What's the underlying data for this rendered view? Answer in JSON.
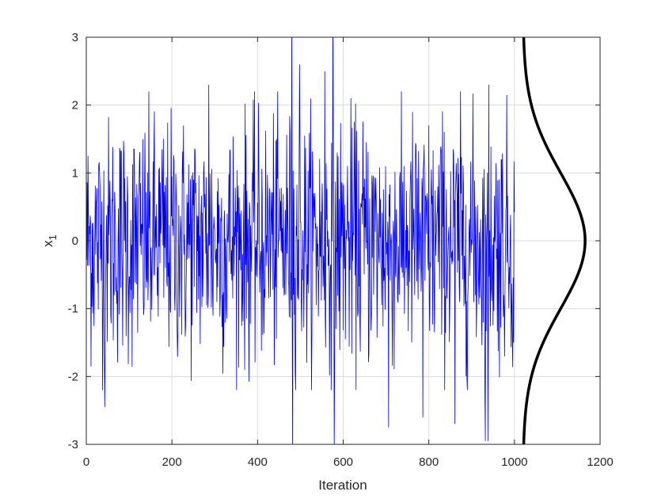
{
  "chart_data": {
    "type": "line",
    "title": "",
    "xlabel": "Iteration",
    "ylabel": "x",
    "ylabel_subscript": "1",
    "xlim": [
      0,
      1200
    ],
    "ylim": [
      -3,
      3
    ],
    "xticks": [
      "0",
      "200",
      "400",
      "600",
      "800",
      "1000",
      "1200"
    ],
    "yticks": [
      "3",
      "2",
      "1",
      "0",
      "-1",
      "-2",
      "-3"
    ],
    "xtick_values": [
      0,
      200,
      400,
      600,
      800,
      1000,
      1200
    ],
    "ytick_values": [
      3,
      2,
      1,
      0,
      -1,
      -2,
      -3
    ],
    "grid": true,
    "series": [
      {
        "description": "MCMC trace of x1, about 1000 iterations, values roughly standard normal",
        "color": "#0000ff",
        "x_start": 1,
        "x_end": 1000,
        "spikes": [
          {
            "x": 480,
            "y": 3.6
          },
          {
            "x": 482,
            "y": -3.4
          },
          {
            "x": 576,
            "y": 3.3
          },
          {
            "x": 579,
            "y": -3.1
          },
          {
            "x": 43,
            "y": -2.45
          },
          {
            "x": 706,
            "y": -2.75
          },
          {
            "x": 786,
            "y": -2.6
          },
          {
            "x": 861,
            "y": -2.7
          },
          {
            "x": 932,
            "y": -2.95
          },
          {
            "x": 938,
            "y": -2.95
          },
          {
            "x": 557,
            "y": 2.5
          },
          {
            "x": 498,
            "y": 2.6
          },
          {
            "x": 286,
            "y": 2.3
          },
          {
            "x": 940,
            "y": 2.3
          },
          {
            "x": 998,
            "y": -1.5
          }
        ]
      },
      {
        "description": "standard normal density drawn sideways to the right of the trace",
        "color": "#000000",
        "curve": "gaussian",
        "mean": 0,
        "sd": 1,
        "base_x": 1020,
        "peak_x": 1165
      }
    ]
  }
}
